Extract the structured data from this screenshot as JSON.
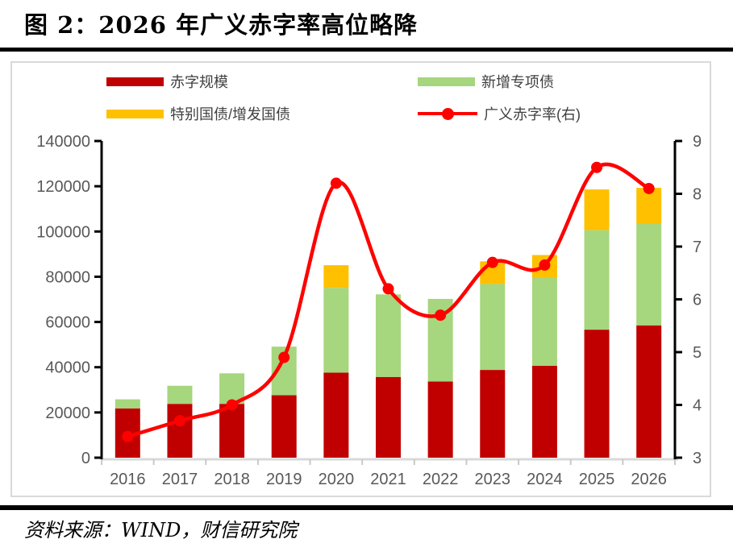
{
  "header": {
    "title": "图 2：2026 年广义赤字率高位略降"
  },
  "footer": {
    "source": "资料来源：WIND，财信研究院"
  },
  "legend": {
    "items": [
      {
        "label": "赤字规模",
        "type": "bar",
        "color": "#C00000"
      },
      {
        "label": "新增专项债",
        "type": "bar",
        "color": "#A6D67D"
      },
      {
        "label": "特别国债/增发国债",
        "type": "bar",
        "color": "#FFC000"
      },
      {
        "label": "广义赤字率(右)",
        "type": "line",
        "color": "#FF0000"
      }
    ]
  },
  "chart_data": {
    "type": "combo",
    "title": "2026 年广义赤字率高位略降",
    "categories": [
      "2016",
      "2017",
      "2018",
      "2019",
      "2020",
      "2021",
      "2022",
      "2023",
      "2024",
      "2025",
      "2026"
    ],
    "series": [
      {
        "name": "赤字规模",
        "type": "bar",
        "stacked": true,
        "axis": "left",
        "color": "#C00000",
        "values": [
          21800,
          23800,
          23800,
          27600,
          37600,
          35700,
          33700,
          38800,
          40600,
          56600,
          58500
        ]
      },
      {
        "name": "新增专项债",
        "type": "bar",
        "stacked": true,
        "axis": "left",
        "color": "#A6D67D",
        "values": [
          4000,
          8000,
          13500,
          21500,
          37500,
          36500,
          36500,
          38000,
          39000,
          44000,
          44800
        ]
      },
      {
        "name": "特别国债/增发国债",
        "type": "bar",
        "stacked": true,
        "axis": "left",
        "color": "#FFC000",
        "values": [
          0,
          0,
          0,
          0,
          10000,
          0,
          0,
          10000,
          10000,
          18000,
          16000
        ]
      },
      {
        "name": "广义赤字率(右)",
        "type": "line",
        "axis": "right",
        "color": "#FF0000",
        "values": [
          3.4,
          3.7,
          4.0,
          4.9,
          8.2,
          6.2,
          5.7,
          6.7,
          6.65,
          8.5,
          8.1
        ]
      }
    ],
    "left_axis": {
      "min": 0,
      "max": 140000,
      "step": 20000,
      "ticks": [
        0,
        20000,
        40000,
        60000,
        80000,
        100000,
        120000,
        140000
      ]
    },
    "right_axis": {
      "min": 3,
      "max": 9,
      "step": 1,
      "ticks": [
        3,
        4,
        5,
        6,
        7,
        8,
        9
      ]
    },
    "grid": false,
    "legend_position": "top",
    "xlabel": "",
    "ylabel": ""
  },
  "colors": {
    "bar_red": "#C00000",
    "bar_green": "#A6D67D",
    "bar_yellow": "#FFC000",
    "line_red": "#FF0000",
    "axis_label": "#595959",
    "legend_text": "#3F3F3F",
    "box_border": "#D9D9D9",
    "rule_black": "#000000"
  }
}
